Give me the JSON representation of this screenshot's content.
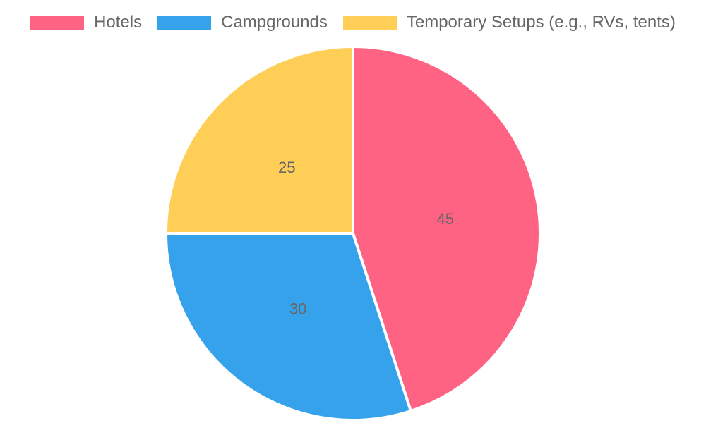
{
  "chart_data": {
    "type": "pie",
    "categories": [
      "Hotels",
      "Campgrounds",
      "Temporary Setups (e.g., RVs, tents)"
    ],
    "values": [
      45,
      30,
      25
    ],
    "colors": [
      "#ff6384",
      "#36a2eb",
      "#ffce56"
    ],
    "legend_position": "top",
    "show_value_labels": true
  }
}
